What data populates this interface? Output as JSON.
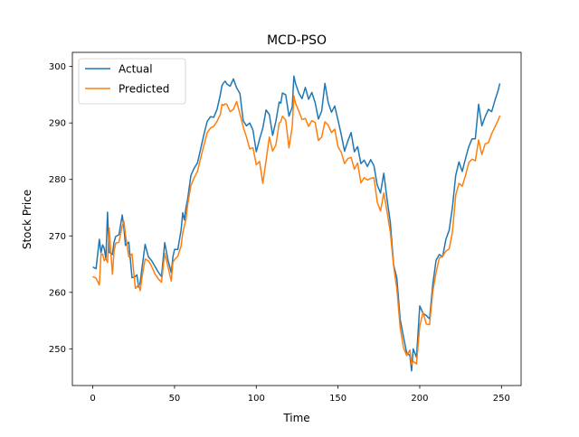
{
  "chart_data": {
    "type": "line",
    "title": "MCD-PSO",
    "xlabel": "Time",
    "ylabel": "Stock Price",
    "xlim": [
      -12.5,
      262
    ],
    "ylim": [
      243.5,
      302.5
    ],
    "xticks": [
      0,
      50,
      100,
      150,
      200,
      250
    ],
    "yticks": [
      250,
      260,
      270,
      280,
      290,
      300
    ],
    "grid": false,
    "legend_position": "upper left",
    "series": [
      {
        "name": "Actual",
        "color": "#1f77b4",
        "x": [
          0,
          2,
          4,
          5,
          6,
          7,
          8,
          9,
          10,
          12,
          13,
          14,
          16,
          18,
          19,
          20,
          22,
          24,
          26,
          27,
          28,
          29,
          30,
          32,
          34,
          36,
          38,
          40,
          42,
          44,
          46,
          48,
          49,
          50,
          52,
          54,
          55,
          56,
          57,
          58,
          60,
          62,
          64,
          66,
          68,
          70,
          72,
          74,
          76,
          78,
          79,
          80,
          81,
          82,
          84,
          86,
          88,
          90,
          92,
          94,
          96,
          98,
          100,
          102,
          104,
          106,
          108,
          110,
          112,
          114,
          115,
          116,
          118,
          120,
          122,
          123,
          124,
          126,
          128,
          130,
          132,
          134,
          136,
          138,
          140,
          142,
          144,
          146,
          148,
          150,
          152,
          154,
          156,
          158,
          160,
          162,
          164,
          166,
          168,
          170,
          172,
          174,
          176,
          178,
          180,
          182,
          184,
          186,
          188,
          190,
          192,
          194,
          195,
          196,
          198,
          200,
          202,
          204,
          206,
          208,
          210,
          212,
          214,
          216,
          218,
          220,
          222,
          224,
          226,
          228,
          230,
          232,
          234,
          236,
          238,
          240,
          242,
          244,
          246,
          248,
          249
        ],
        "values": [
          264.5,
          264.2,
          269.4,
          267.0,
          268.4,
          267.8,
          265.9,
          274.2,
          267.1,
          266.7,
          268.9,
          269.9,
          270.2,
          273.7,
          271.5,
          268.3,
          268.9,
          262.6,
          262.8,
          263.1,
          260.9,
          261.8,
          264.1,
          268.5,
          266.3,
          265.6,
          264.6,
          263.6,
          262.8,
          268.8,
          265.7,
          263.5,
          266.3,
          267.6,
          267.6,
          271.0,
          274.1,
          272.8,
          275.0,
          276.5,
          280.7,
          282.0,
          282.9,
          285.4,
          288.0,
          290.3,
          291.1,
          291.0,
          292.4,
          295.0,
          296.6,
          297.1,
          297.4,
          296.9,
          296.5,
          297.8,
          296.2,
          295.2,
          290.4,
          289.5,
          290.0,
          288.7,
          284.9,
          287.1,
          289.1,
          292.3,
          291.5,
          287.8,
          290.3,
          293.7,
          293.5,
          295.3,
          295.0,
          291.2,
          292.8,
          298.3,
          297.0,
          295.3,
          294.3,
          296.3,
          294.2,
          295.4,
          293.6,
          290.7,
          292.1,
          297.0,
          293.6,
          291.9,
          293.0,
          290.5,
          287.9,
          285.0,
          286.8,
          288.3,
          284.9,
          285.8,
          282.8,
          283.4,
          282.3,
          283.5,
          282.4,
          279.0,
          277.6,
          281.1,
          276.5,
          272.4,
          264.9,
          262.5,
          255.3,
          252.2,
          249.3,
          248.8,
          246.1,
          250.0,
          248.5,
          257.6,
          256.3,
          255.9,
          255.3,
          261.5,
          265.7,
          266.7,
          266.3,
          269.4,
          271.0,
          275.1,
          280.7,
          283.1,
          281.4,
          283.7,
          285.8,
          287.2,
          287.2,
          293.3,
          289.5,
          291.1,
          292.4,
          292.0,
          294.0,
          295.8,
          297.0
        ]
      },
      {
        "name": "Predicted",
        "color": "#ff7f0e",
        "x": [
          0,
          2,
          4,
          5,
          6,
          7,
          8,
          9,
          10,
          12,
          13,
          14,
          16,
          18,
          19,
          20,
          22,
          24,
          26,
          27,
          28,
          29,
          30,
          32,
          34,
          36,
          38,
          40,
          42,
          44,
          46,
          48,
          49,
          50,
          52,
          54,
          55,
          56,
          57,
          58,
          60,
          62,
          64,
          66,
          68,
          70,
          72,
          74,
          76,
          78,
          79,
          80,
          81,
          82,
          84,
          86,
          88,
          90,
          92,
          94,
          96,
          98,
          100,
          102,
          104,
          106,
          108,
          110,
          112,
          114,
          115,
          116,
          118,
          120,
          122,
          123,
          124,
          126,
          128,
          130,
          132,
          134,
          136,
          138,
          140,
          142,
          144,
          146,
          148,
          150,
          152,
          154,
          156,
          158,
          160,
          162,
          164,
          166,
          168,
          170,
          172,
          174,
          176,
          178,
          180,
          182,
          184,
          186,
          188,
          190,
          192,
          194,
          195,
          196,
          198,
          200,
          202,
          204,
          206,
          208,
          210,
          212,
          214,
          216,
          218,
          220,
          222,
          224,
          226,
          228,
          230,
          232,
          234,
          236,
          238,
          240,
          242,
          244,
          246,
          248,
          249
        ],
        "values": [
          262.8,
          262.5,
          261.3,
          266.7,
          266.8,
          265.6,
          266.0,
          265.3,
          271.4,
          263.2,
          267.3,
          268.7,
          268.9,
          271.8,
          272.6,
          270.2,
          266.3,
          266.8,
          260.7,
          261.0,
          261.5,
          260.3,
          262.5,
          265.9,
          265.6,
          264.6,
          263.3,
          262.4,
          261.8,
          266.9,
          264.5,
          262.0,
          265.3,
          265.8,
          266.4,
          268.2,
          270.5,
          271.7,
          273.0,
          275.5,
          278.9,
          280.3,
          281.4,
          283.8,
          286.1,
          288.3,
          289.1,
          289.4,
          290.3,
          291.5,
          293.3,
          293.1,
          293.4,
          293.3,
          292.0,
          292.4,
          293.8,
          291.6,
          289.3,
          287.5,
          285.4,
          285.6,
          282.6,
          283.2,
          279.3,
          283.4,
          287.5,
          285.0,
          286.1,
          290.0,
          290.2,
          291.2,
          290.5,
          285.6,
          289.4,
          294.8,
          293.5,
          292.1,
          290.6,
          290.8,
          289.4,
          290.4,
          290.1,
          286.9,
          287.5,
          290.2,
          289.6,
          288.3,
          288.9,
          285.8,
          284.8,
          282.8,
          283.7,
          283.9,
          281.8,
          282.9,
          279.4,
          280.3,
          279.9,
          280.2,
          280.3,
          276.0,
          274.4,
          277.6,
          274.3,
          270.6,
          264.7,
          260.6,
          253.8,
          250.3,
          248.8,
          249.8,
          247.2,
          247.8,
          247.3,
          254.0,
          256.5,
          254.4,
          254.3,
          260.2,
          263.5,
          266.1,
          266.4,
          267.3,
          267.7,
          270.7,
          277.2,
          279.3,
          278.8,
          280.7,
          283.0,
          283.6,
          283.3,
          287.0,
          284.4,
          286.3,
          286.5,
          288.1,
          289.3,
          290.5,
          291.3
        ]
      }
    ]
  }
}
